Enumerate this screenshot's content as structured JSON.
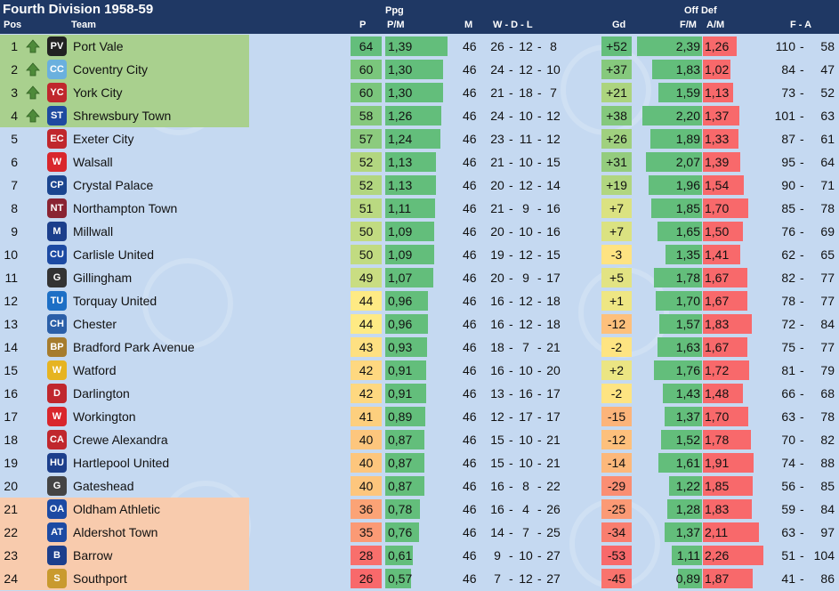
{
  "table": {
    "title": "Fourth Division 1958-59",
    "group_headers": {
      "ppg": "Ppg",
      "offdef": "Off Def"
    },
    "headers": {
      "pos": "Pos",
      "team": "Team",
      "p": "P",
      "pm": "P/M",
      "m": "M",
      "wdl": "W  -  D  -  L",
      "gd": "Gd",
      "fm": "F/M",
      "am": "A/M",
      "fa": "F  -  A"
    },
    "watermark": "BALLON",
    "colors": {
      "header": "#1f3864",
      "background": "#c5d9f1",
      "promotion": "#a9d08e",
      "relegation": "#f8cbad",
      "bar_green": "#63be7b",
      "bar_red": "#f8696b"
    },
    "rows": [
      {
        "pos": "1",
        "promo": true,
        "badge": "PV",
        "badge_color": "#222222",
        "team": "Port Vale",
        "p": "64",
        "p_color": "#63be7b",
        "pm": "1,39",
        "pm_val": 1.39,
        "m": "46",
        "w": "26",
        "d": "12",
        "l": "8",
        "gd": "+52",
        "gd_color": "#63be7b",
        "fm": "2,39",
        "fm_val": 2.39,
        "am": "1,26",
        "am_val": 1.26,
        "f": "110",
        "a": "58"
      },
      {
        "pos": "2",
        "promo": true,
        "badge": "CC",
        "badge_color": "#6ab0de",
        "team": "Coventry City",
        "p": "60",
        "p_color": "#7ac67c",
        "pm": "1,30",
        "pm_val": 1.3,
        "m": "46",
        "w": "24",
        "d": "12",
        "l": "10",
        "gd": "+37",
        "gd_color": "#86c97d",
        "fm": "1,83",
        "fm_val": 1.83,
        "am": "1,02",
        "am_val": 1.02,
        "f": "84",
        "a": "47"
      },
      {
        "pos": "3",
        "promo": true,
        "badge": "YC",
        "badge_color": "#c0272d",
        "team": "York City",
        "p": "60",
        "p_color": "#7ac67c",
        "pm": "1,30",
        "pm_val": 1.3,
        "m": "46",
        "w": "21",
        "d": "18",
        "l": "7",
        "gd": "+21",
        "gd_color": "#acd47f",
        "fm": "1,59",
        "fm_val": 1.59,
        "am": "1,13",
        "am_val": 1.13,
        "f": "73",
        "a": "52"
      },
      {
        "pos": "4",
        "promo": true,
        "badge": "ST",
        "badge_color": "#1e4aa0",
        "team": "Shrewsbury Town",
        "p": "58",
        "p_color": "#86c97d",
        "pm": "1,26",
        "pm_val": 1.26,
        "m": "46",
        "w": "24",
        "d": "10",
        "l": "12",
        "gd": "+38",
        "gd_color": "#84c87d",
        "fm": "2,20",
        "fm_val": 2.2,
        "am": "1,37",
        "am_val": 1.37,
        "f": "101",
        "a": "63"
      },
      {
        "pos": "5",
        "promo": false,
        "badge": "EC",
        "badge_color": "#c0272d",
        "team": "Exeter City",
        "p": "57",
        "p_color": "#8ccb7e",
        "pm": "1,24",
        "pm_val": 1.24,
        "m": "46",
        "w": "23",
        "d": "11",
        "l": "12",
        "gd": "+26",
        "gd_color": "#a0d07f",
        "fm": "1,89",
        "fm_val": 1.89,
        "am": "1,33",
        "am_val": 1.33,
        "f": "87",
        "a": "61"
      },
      {
        "pos": "6",
        "promo": false,
        "badge": "W",
        "badge_color": "#d9262c",
        "team": "Walsall",
        "p": "52",
        "p_color": "#b2d680",
        "pm": "1,13",
        "pm_val": 1.13,
        "m": "46",
        "w": "21",
        "d": "10",
        "l": "15",
        "gd": "+31",
        "gd_color": "#94cc7e",
        "fm": "2,07",
        "fm_val": 2.07,
        "am": "1,39",
        "am_val": 1.39,
        "f": "95",
        "a": "64"
      },
      {
        "pos": "7",
        "promo": false,
        "badge": "CP",
        "badge_color": "#1b458f",
        "team": "Crystal Palace",
        "p": "52",
        "p_color": "#b2d680",
        "pm": "1,13",
        "pm_val": 1.13,
        "m": "46",
        "w": "20",
        "d": "12",
        "l": "14",
        "gd": "+19",
        "gd_color": "#b1d680",
        "fm": "1,96",
        "fm_val": 1.96,
        "am": "1,54",
        "am_val": 1.54,
        "f": "90",
        "a": "71"
      },
      {
        "pos": "8",
        "promo": false,
        "badge": "NT",
        "badge_color": "#8a2432",
        "team": "Northampton Town",
        "p": "51",
        "p_color": "#bad981",
        "pm": "1,11",
        "pm_val": 1.11,
        "m": "46",
        "w": "21",
        "d": "9",
        "l": "16",
        "gd": "+7",
        "gd_color": "#dbe281",
        "fm": "1,85",
        "fm_val": 1.85,
        "am": "1,70",
        "am_val": 1.7,
        "f": "85",
        "a": "78"
      },
      {
        "pos": "9",
        "promo": false,
        "badge": "M",
        "badge_color": "#1c3f8c",
        "team": "Millwall",
        "p": "50",
        "p_color": "#c1db81",
        "pm": "1,09",
        "pm_val": 1.09,
        "m": "46",
        "w": "20",
        "d": "10",
        "l": "16",
        "gd": "+7",
        "gd_color": "#dbe281",
        "fm": "1,65",
        "fm_val": 1.65,
        "am": "1,50",
        "am_val": 1.5,
        "f": "76",
        "a": "69"
      },
      {
        "pos": "10",
        "promo": false,
        "badge": "CU",
        "badge_color": "#1c4aa3",
        "team": "Carlisle United",
        "p": "50",
        "p_color": "#c1db81",
        "pm": "1,09",
        "pm_val": 1.09,
        "m": "46",
        "w": "19",
        "d": "12",
        "l": "15",
        "gd": "-3",
        "gd_color": "#fee382",
        "fm": "1,35",
        "fm_val": 1.35,
        "am": "1,41",
        "am_val": 1.41,
        "f": "62",
        "a": "65"
      },
      {
        "pos": "11",
        "promo": false,
        "badge": "G",
        "badge_color": "#333333",
        "team": "Gillingham",
        "p": "49",
        "p_color": "#c9dd82",
        "pm": "1,07",
        "pm_val": 1.07,
        "m": "46",
        "w": "20",
        "d": "9",
        "l": "17",
        "gd": "+5",
        "gd_color": "#e2e383",
        "fm": "1,78",
        "fm_val": 1.78,
        "am": "1,67",
        "am_val": 1.67,
        "f": "82",
        "a": "77"
      },
      {
        "pos": "12",
        "promo": false,
        "badge": "TU",
        "badge_color": "#1d6fc5",
        "team": "Torquay United",
        "p": "44",
        "p_color": "#feea84",
        "pm": "0,96",
        "pm_val": 0.96,
        "m": "46",
        "w": "16",
        "d": "12",
        "l": "18",
        "gd": "+1",
        "gd_color": "#eee683",
        "fm": "1,70",
        "fm_val": 1.7,
        "am": "1,67",
        "am_val": 1.67,
        "f": "78",
        "a": "77"
      },
      {
        "pos": "13",
        "promo": false,
        "badge": "CH",
        "badge_color": "#2b5fa8",
        "team": "Chester",
        "p": "44",
        "p_color": "#feea84",
        "pm": "0,96",
        "pm_val": 0.96,
        "m": "46",
        "w": "16",
        "d": "12",
        "l": "18",
        "gd": "-12",
        "gd_color": "#fdc07c",
        "fm": "1,57",
        "fm_val": 1.57,
        "am": "1,83",
        "am_val": 1.83,
        "f": "72",
        "a": "84"
      },
      {
        "pos": "14",
        "promo": false,
        "badge": "BP",
        "badge_color": "#a67c2d",
        "team": "Bradford Park Avenue",
        "p": "43",
        "p_color": "#fee082",
        "pm": "0,93",
        "pm_val": 0.93,
        "m": "46",
        "w": "18",
        "d": "7",
        "l": "21",
        "gd": "-2",
        "gd_color": "#fee482",
        "fm": "1,63",
        "fm_val": 1.63,
        "am": "1,67",
        "am_val": 1.67,
        "f": "75",
        "a": "77"
      },
      {
        "pos": "15",
        "promo": false,
        "badge": "W",
        "badge_color": "#e6b422",
        "team": "Watford",
        "p": "42",
        "p_color": "#fed880",
        "pm": "0,91",
        "pm_val": 0.91,
        "m": "46",
        "w": "16",
        "d": "10",
        "l": "20",
        "gd": "+2",
        "gd_color": "#ebe583",
        "fm": "1,76",
        "fm_val": 1.76,
        "am": "1,72",
        "am_val": 1.72,
        "f": "81",
        "a": "79"
      },
      {
        "pos": "16",
        "promo": false,
        "badge": "D",
        "badge_color": "#c0272d",
        "team": "Darlington",
        "p": "42",
        "p_color": "#fed880",
        "pm": "0,91",
        "pm_val": 0.91,
        "m": "46",
        "w": "13",
        "d": "16",
        "l": "17",
        "gd": "-2",
        "gd_color": "#fee482",
        "fm": "1,43",
        "fm_val": 1.43,
        "am": "1,48",
        "am_val": 1.48,
        "f": "66",
        "a": "68"
      },
      {
        "pos": "17",
        "promo": false,
        "badge": "W",
        "badge_color": "#d9262c",
        "team": "Workington",
        "p": "41",
        "p_color": "#fdcf7e",
        "pm": "0,89",
        "pm_val": 0.89,
        "m": "46",
        "w": "12",
        "d": "17",
        "l": "17",
        "gd": "-15",
        "gd_color": "#fcb47a",
        "fm": "1,37",
        "fm_val": 1.37,
        "am": "1,70",
        "am_val": 1.7,
        "f": "63",
        "a": "78"
      },
      {
        "pos": "18",
        "promo": false,
        "badge": "CA",
        "badge_color": "#c0272d",
        "team": "Crewe Alexandra",
        "p": "40",
        "p_color": "#fdc67d",
        "pm": "0,87",
        "pm_val": 0.87,
        "m": "46",
        "w": "15",
        "d": "10",
        "l": "21",
        "gd": "-12",
        "gd_color": "#fdc07c",
        "fm": "1,52",
        "fm_val": 1.52,
        "am": "1,78",
        "am_val": 1.78,
        "f": "70",
        "a": "82"
      },
      {
        "pos": "19",
        "promo": false,
        "badge": "HU",
        "badge_color": "#1c3f8c",
        "team": "Hartlepool United",
        "p": "40",
        "p_color": "#fdc67d",
        "pm": "0,87",
        "pm_val": 0.87,
        "m": "46",
        "w": "15",
        "d": "10",
        "l": "21",
        "gd": "-14",
        "gd_color": "#fcb87b",
        "fm": "1,61",
        "fm_val": 1.61,
        "am": "1,91",
        "am_val": 1.91,
        "f": "74",
        "a": "88"
      },
      {
        "pos": "20",
        "promo": false,
        "badge": "G",
        "badge_color": "#444444",
        "team": "Gateshead",
        "p": "40",
        "p_color": "#fdc67d",
        "pm": "0,87",
        "pm_val": 0.87,
        "m": "46",
        "w": "16",
        "d": "8",
        "l": "22",
        "gd": "-29",
        "gd_color": "#fa8e73",
        "fm": "1,22",
        "fm_val": 1.22,
        "am": "1,85",
        "am_val": 1.85,
        "f": "56",
        "a": "85"
      },
      {
        "pos": "21",
        "promo": false,
        "releg": true,
        "badge": "OA",
        "badge_color": "#1c4aa3",
        "team": "Oldham Athletic",
        "p": "36",
        "p_color": "#fba376",
        "pm": "0,78",
        "pm_val": 0.78,
        "m": "46",
        "w": "16",
        "d": "4",
        "l": "26",
        "gd": "-25",
        "gd_color": "#fb9a75",
        "fm": "1,28",
        "fm_val": 1.28,
        "am": "1,83",
        "am_val": 1.83,
        "f": "59",
        "a": "84"
      },
      {
        "pos": "22",
        "promo": false,
        "releg": true,
        "badge": "AT",
        "badge_color": "#1c4aa3",
        "team": "Aldershot Town",
        "p": "35",
        "p_color": "#fb9a75",
        "pm": "0,76",
        "pm_val": 0.76,
        "m": "46",
        "w": "14",
        "d": "7",
        "l": "25",
        "gd": "-34",
        "gd_color": "#f97e6f",
        "fm": "1,37",
        "fm_val": 1.37,
        "am": "2,11",
        "am_val": 2.11,
        "f": "63",
        "a": "97"
      },
      {
        "pos": "23",
        "promo": false,
        "releg": true,
        "badge": "B",
        "badge_color": "#1c3f8c",
        "team": "Barrow",
        "p": "28",
        "p_color": "#f86f6c",
        "pm": "0,61",
        "pm_val": 0.61,
        "m": "46",
        "w": "9",
        "d": "10",
        "l": "27",
        "gd": "-53",
        "gd_color": "#f8696b",
        "fm": "1,11",
        "fm_val": 1.11,
        "am": "2,26",
        "am_val": 2.26,
        "f": "51",
        "a": "104"
      },
      {
        "pos": "24",
        "promo": false,
        "releg": true,
        "badge": "S",
        "badge_color": "#c99a2e",
        "team": "Southport",
        "p": "26",
        "p_color": "#f8696b",
        "pm": "0,57",
        "pm_val": 0.57,
        "m": "46",
        "w": "7",
        "d": "12",
        "l": "27",
        "gd": "-45",
        "gd_color": "#f9736d",
        "fm": "0,89",
        "fm_val": 0.89,
        "am": "1,87",
        "am_val": 1.87,
        "f": "41",
        "a": "86"
      }
    ]
  }
}
